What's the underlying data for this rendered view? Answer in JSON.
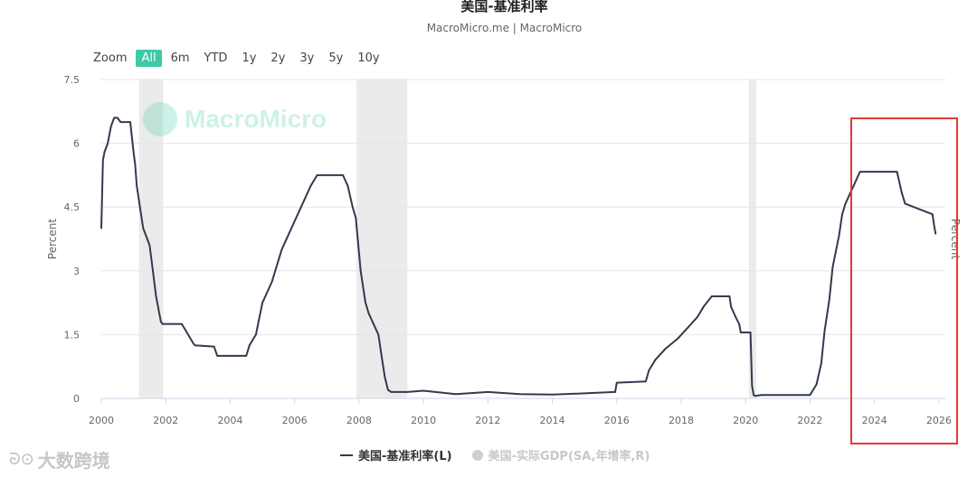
{
  "header": {
    "title": "美国-基准利率",
    "subtitle": "MacroMicro.me | MacroMicro"
  },
  "zoom": {
    "label": "Zoom",
    "options": [
      "All",
      "6m",
      "YTD",
      "1y",
      "2y",
      "3y",
      "5y",
      "10y"
    ],
    "active": "All"
  },
  "watermark": {
    "text": "MacroMicro"
  },
  "legend": {
    "items": [
      {
        "label": "美国-基准利率(L)",
        "active": true
      },
      {
        "label": "美国-实际GDP(SA,年增率,R)",
        "active": false
      }
    ]
  },
  "bottom_logo": {
    "text": "大数跨境"
  },
  "colors": {
    "line": "#333a4d",
    "accent": "#3ec9a7",
    "recession_band": "#ebebeb",
    "highlight_box": "#e53935",
    "grid": "#e6e6e6"
  },
  "chart_data": {
    "type": "line",
    "title": "美国-基准利率",
    "subtitle": "MacroMicro.me | MacroMicro",
    "xlabel": "",
    "ylabel": "Percent",
    "ylabel_right": "Percent",
    "xlim": [
      2000,
      2026.2
    ],
    "ylim": [
      0,
      7.5
    ],
    "x_ticks": [
      "2000",
      "2002",
      "2004",
      "2006",
      "2008",
      "2010",
      "2012",
      "2014",
      "2016",
      "2018",
      "2020",
      "2022",
      "2024",
      "2026"
    ],
    "y_ticks": [
      "0",
      "1.5",
      "3",
      "4.5",
      "6",
      "7.5"
    ],
    "grid": true,
    "legend_position": "bottom",
    "recession_periods": [
      [
        2001.17,
        2001.92
      ],
      [
        2007.92,
        2009.5
      ],
      [
        2020.1,
        2020.33
      ]
    ],
    "highlight_period": [
      2023.2,
      2026.55
    ],
    "series": [
      {
        "name": "美国-基准利率(L)",
        "x": [
          2000.0,
          2000.05,
          2000.1,
          2000.2,
          2000.3,
          2000.4,
          2000.5,
          2000.6,
          2000.9,
          2001.0,
          2001.05,
          2001.1,
          2001.2,
          2001.3,
          2001.4,
          2001.5,
          2001.6,
          2001.7,
          2001.8,
          2001.85,
          2001.9,
          2002.0,
          2002.5,
          2002.85,
          2002.9,
          2003.5,
          2003.6,
          2004.0,
          2004.5,
          2004.6,
          2004.8,
          2005.0,
          2005.3,
          2005.6,
          2005.9,
          2006.2,
          2006.5,
          2006.7,
          2007.5,
          2007.65,
          2007.8,
          2007.9,
          2008.05,
          2008.2,
          2008.3,
          2008.6,
          2008.7,
          2008.8,
          2008.9,
          2009.0,
          2009.5,
          2010.0,
          2011.0,
          2012.0,
          2013.0,
          2014.0,
          2015.0,
          2015.95,
          2016.0,
          2016.9,
          2017.0,
          2017.2,
          2017.5,
          2017.9,
          2018.2,
          2018.5,
          2018.7,
          2018.95,
          2019.5,
          2019.55,
          2019.7,
          2019.8,
          2019.85,
          2020.15,
          2020.2,
          2020.25,
          2020.3,
          2020.5,
          2021.0,
          2022.0,
          2022.2,
          2022.35,
          2022.45,
          2022.6,
          2022.7,
          2022.9,
          2023.0,
          2023.1,
          2023.25,
          2023.4,
          2023.55,
          2024.7,
          2024.85,
          2024.95,
          2025.8,
          2025.85,
          2025.9
        ],
        "values": [
          4.0,
          5.6,
          5.8,
          6.0,
          6.4,
          6.6,
          6.6,
          6.5,
          6.5,
          5.8,
          5.5,
          5.0,
          4.5,
          4.0,
          3.8,
          3.6,
          3.0,
          2.4,
          2.0,
          1.8,
          1.75,
          1.75,
          1.75,
          1.3,
          1.25,
          1.22,
          1.0,
          1.0,
          1.0,
          1.25,
          1.5,
          2.25,
          2.75,
          3.5,
          4.0,
          4.5,
          5.0,
          5.25,
          5.25,
          5.0,
          4.5,
          4.25,
          3.0,
          2.25,
          2.0,
          1.5,
          1.0,
          0.5,
          0.2,
          0.15,
          0.15,
          0.18,
          0.1,
          0.15,
          0.1,
          0.09,
          0.12,
          0.15,
          0.37,
          0.4,
          0.66,
          0.91,
          1.16,
          1.41,
          1.66,
          1.91,
          2.16,
          2.4,
          2.4,
          2.15,
          1.9,
          1.75,
          1.55,
          1.55,
          0.3,
          0.08,
          0.06,
          0.08,
          0.08,
          0.08,
          0.33,
          0.83,
          1.58,
          2.33,
          3.08,
          3.83,
          4.33,
          4.58,
          4.83,
          5.08,
          5.33,
          5.33,
          4.83,
          4.58,
          4.33,
          4.08,
          3.87
        ]
      },
      {
        "name": "美国-实际GDP(SA,年增率,R)",
        "hidden": true
      }
    ]
  }
}
